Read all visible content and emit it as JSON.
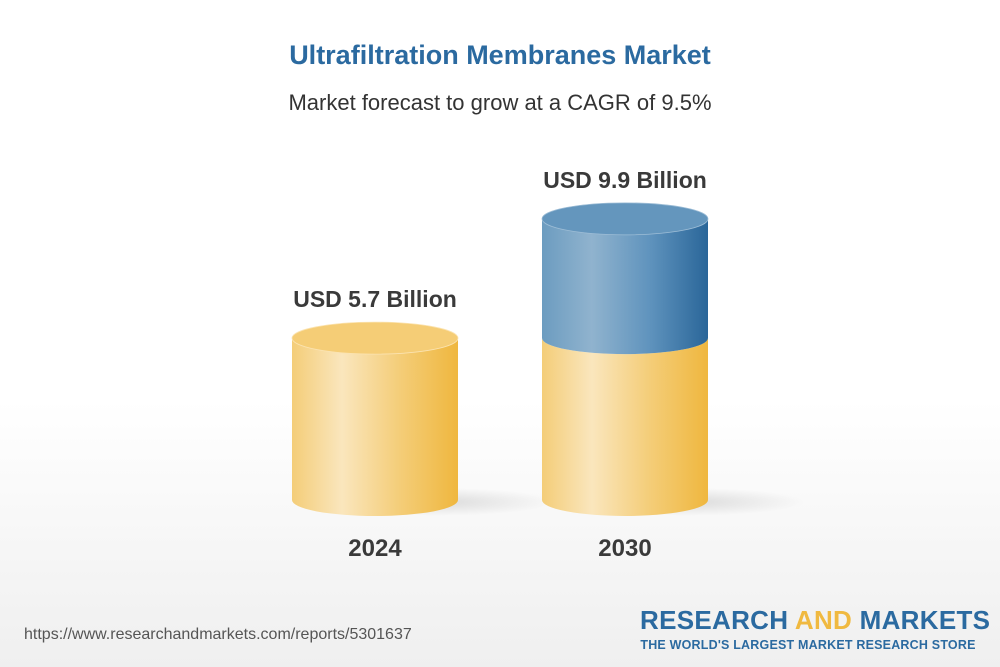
{
  "chart_data": {
    "type": "bar",
    "style": "3d-cylinder",
    "title": "Ultrafiltration Membranes Market",
    "subtitle": "Market forecast to grow at a CAGR of 9.5%",
    "categories": [
      "2024",
      "2030"
    ],
    "values": [
      5.7,
      9.9
    ],
    "unit": "USD Billion",
    "data_labels": [
      "USD 5.7 Billion",
      "USD 9.9 Billion"
    ],
    "grid": false,
    "colors": {
      "base": "#f2c04e",
      "growth": "#2c6b9e"
    }
  },
  "footer": {
    "url": "https://www.researchandmarkets.com/reports/5301637",
    "logo_part1": "RESEARCH ",
    "logo_part2": "AND",
    "logo_part3": " MARKETS",
    "tagline": "THE WORLD'S LARGEST MARKET RESEARCH STORE"
  }
}
